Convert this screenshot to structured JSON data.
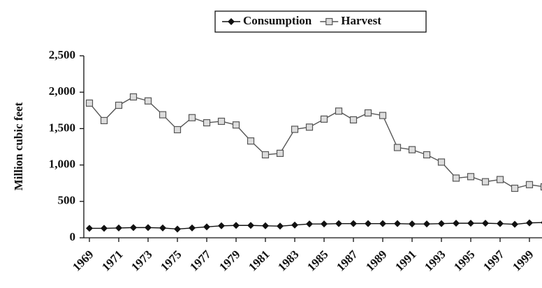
{
  "chart_data": {
    "type": "line",
    "y_label": "Million cubic feet",
    "x": [
      1969,
      1970,
      1971,
      1972,
      1973,
      1974,
      1975,
      1976,
      1977,
      1978,
      1979,
      1980,
      1981,
      1982,
      1983,
      1984,
      1985,
      1986,
      1987,
      1988,
      1989,
      1990,
      1991,
      1992,
      1993,
      1994,
      1995,
      1996,
      1997,
      1998,
      1999,
      2000
    ],
    "xlim": [
      1969,
      2000
    ],
    "xticks": [
      1969,
      1971,
      1973,
      1975,
      1977,
      1979,
      1981,
      1983,
      1985,
      1987,
      1989,
      1991,
      1993,
      1995,
      1997,
      1999
    ],
    "ylim": [
      0,
      2500
    ],
    "yticks": [
      0,
      500,
      {
        "value": 1000,
        "label": "1,000"
      },
      {
        "value": 1500,
        "label": "1,500"
      },
      {
        "value": 2000,
        "label": "2,000"
      },
      {
        "value": 2500,
        "label": "2,500"
      }
    ],
    "legend": "top",
    "series": [
      {
        "name": "Consumption",
        "color": "#111111",
        "marker": "diamond",
        "values": [
          130,
          130,
          135,
          140,
          140,
          135,
          120,
          135,
          150,
          165,
          170,
          170,
          165,
          160,
          175,
          190,
          190,
          195,
          195,
          195,
          195,
          195,
          190,
          190,
          195,
          200,
          200,
          200,
          195,
          185,
          205,
          210
        ]
      },
      {
        "name": "Harvest",
        "color": "#555555",
        "marker": "square",
        "values": [
          1850,
          1610,
          1820,
          1935,
          1880,
          1690,
          1485,
          1650,
          1580,
          1600,
          1550,
          1330,
          1140,
          1160,
          1490,
          1520,
          1630,
          1740,
          1620,
          1715,
          1680,
          1240,
          1210,
          1140,
          1040,
          820,
          840,
          770,
          800,
          680,
          730,
          700
        ]
      }
    ]
  }
}
